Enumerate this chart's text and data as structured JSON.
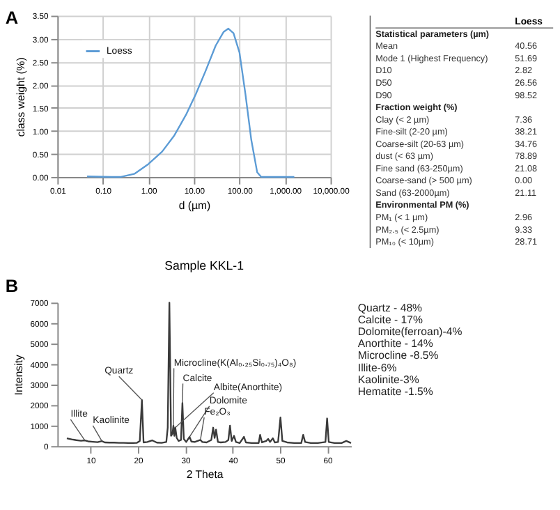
{
  "chart_data": [
    {
      "type": "line",
      "xlabel": "d (µm)",
      "ylabel": "class weight (%)",
      "annotations": [
        "A"
      ],
      "log": "x",
      "grid": true,
      "legend": "top left",
      "marker": "none",
      "line_style": "solid",
      "xlim": [
        0.01,
        10000
      ],
      "xticks": [
        {
          "value": 0.01,
          "label": "0.01"
        },
        {
          "value": 0.1,
          "label": "0.10"
        },
        {
          "value": 1,
          "label": "1.00"
        },
        {
          "value": 10,
          "label": "10.00"
        },
        {
          "value": 100,
          "label": "100.00"
        },
        {
          "value": 1000,
          "label": "1,000.00"
        },
        {
          "value": 10000,
          "label": "10,000.00"
        }
      ],
      "ylim": [
        0,
        3.5
      ],
      "yticks": [
        {
          "value": 0,
          "label": "0.00"
        },
        {
          "value": 0.5,
          "label": "0.50"
        },
        {
          "value": 1,
          "label": "1.00"
        },
        {
          "value": 1.5,
          "label": "1.50"
        },
        {
          "value": 2,
          "label": "2.00"
        },
        {
          "value": 2.5,
          "label": "2.50"
        },
        {
          "value": 3,
          "label": "3.00"
        },
        {
          "value": 3.5,
          "label": "3.50"
        }
      ],
      "x": [
        0.045,
        0.15,
        0.25,
        0.5,
        1,
        2,
        3.7,
        6.7,
        11,
        18,
        30,
        45,
        57,
        74,
        100,
        135,
        182,
        245,
        300,
        1600
      ],
      "series": [
        {
          "name": "Loess",
          "color": "#5b9bd5",
          "values": [
            0.01,
            0,
            0,
            0.07,
            0.28,
            0.55,
            0.9,
            1.35,
            1.8,
            2.3,
            2.85,
            3.15,
            3.22,
            3.12,
            2.7,
            1.8,
            0.8,
            0.1,
            0,
            0
          ]
        }
      ]
    },
    {
      "type": "other",
      "title": "Loess",
      "categories": [
        "Statistical parameters (µm)",
        "Mean",
        "Mode 1 (Highest Frequency)",
        "D10",
        "D50",
        "D90",
        "Fraction weight (%)",
        "Clay (< 2 µm)",
        "Fine-silt (2-20 µm)",
        "Coarse-silt (20-63 µm)",
        "dust (< 63 µm)",
        "Fine sand (63-250µm)",
        "Coarse-sand (> 500 µm)",
        "Sand (63-2000µm)",
        "Environmental PM (%)",
        "PM₁ (< 1 µm)",
        "PM₂.₅ (< 2.5µm)",
        "PM₁₀ (< 10µm)"
      ],
      "value_labels": [
        null,
        "40.56",
        "51.69",
        "2.82",
        "26.56",
        "98.52",
        null,
        "7.36",
        "38.21",
        "34.76",
        "78.89",
        "21.08",
        "0.00",
        "21.11",
        null,
        "2.96",
        "9.33",
        "28.71"
      ]
    },
    {
      "type": "line",
      "title": "Sample KKL-1",
      "xlabel": "2 Theta",
      "ylabel": "Intensity",
      "grid": false,
      "legend": false,
      "marker": "none",
      "line_style": "solid",
      "xlim": [
        3,
        65
      ],
      "xticks": [
        10,
        20,
        30,
        40,
        50,
        60
      ],
      "ylim": [
        0,
        7000
      ],
      "yticks": [
        0,
        1000,
        2000,
        3000,
        4000,
        5000,
        6000,
        {
          "value": 7000,
          "label": "7000"
        }
      ],
      "x": [
        5,
        6,
        7,
        8,
        8.8,
        9.5,
        10.5,
        11.5,
        12.4,
        13,
        14,
        15,
        16,
        17,
        18,
        19,
        19.8,
        20.4,
        20.85,
        21.2,
        22,
        23,
        24,
        25,
        26,
        26.3,
        26.65,
        27,
        27.3,
        27.5,
        27.7,
        27.9,
        28.2,
        28.6,
        29.1,
        29.4,
        29.7,
        30.2,
        30.9,
        31.3,
        32,
        33.2,
        33.6,
        34.5,
        35.5,
        35.9,
        36.2,
        36.5,
        36.9,
        37.5,
        38.5,
        39.1,
        39.45,
        39.8,
        40.3,
        40.7,
        41.5,
        42.4,
        42.8,
        44,
        45.5,
        45.8,
        46.2,
        47.1,
        47.5,
        47.9,
        48.5,
        48.9,
        49.6,
        50.1,
        50.5,
        51.5,
        53,
        54.5,
        54.9,
        55.3,
        56.5,
        58,
        59.6,
        59.95,
        60.3,
        61.5,
        63,
        64,
        65
      ],
      "series": [
        {
          "color": "#3a3a3a",
          "values": [
            380,
            330,
            290,
            260,
            280,
            230,
            210,
            190,
            240,
            180,
            170,
            170,
            160,
            160,
            150,
            150,
            160,
            250,
            2250,
            180,
            200,
            280,
            170,
            160,
            200,
            900,
            7000,
            500,
            600,
            1000,
            500,
            900,
            400,
            250,
            300,
            2100,
            350,
            200,
            450,
            220,
            200,
            300,
            200,
            180,
            300,
            900,
            400,
            800,
            200,
            180,
            200,
            300,
            1000,
            250,
            500,
            200,
            150,
            450,
            180,
            150,
            150,
            550,
            180,
            250,
            350,
            200,
            380,
            180,
            200,
            1400,
            250,
            180,
            150,
            150,
            550,
            200,
            150,
            150,
            200,
            1350,
            200,
            150,
            150,
            250,
            150
          ]
        }
      ],
      "annotations": [
        "B",
        "Quartz - 48%",
        "Calcite - 17%",
        "Dolomite(ferroan)-4%",
        "Anorthite - 14%",
        "Microcline -8.5%",
        "Illite-6%",
        "Kaolinite-3%",
        "Hematite -1.5%",
        {
          "text": "Illite",
          "x": 8.8,
          "y": 280
        },
        {
          "text": "Kaolinite",
          "x": 12.4,
          "y": 240
        },
        {
          "text": "Quartz",
          "x": 20.85,
          "y": 2250
        },
        {
          "text": "Microcline(K(Al₀.₂₅Si₀.₇₅)₄O₈)",
          "x": 27.5,
          "y": 1000
        },
        {
          "text": "Calcite",
          "x": 29.4,
          "y": 2100
        },
        {
          "text": "Albite(Anorthite)",
          "x": 27.9,
          "y": 900
        },
        {
          "text": "Dolomite",
          "x": 30.9,
          "y": 450
        },
        {
          "text": "Fe₂O₃",
          "x": 33.2,
          "y": 300
        }
      ]
    }
  ]
}
